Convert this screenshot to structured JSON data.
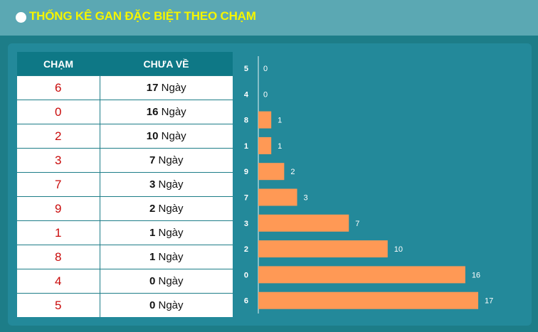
{
  "header": {
    "title": "THỐNG KÊ GAN ĐẶC BIỆT THEO CHẠM"
  },
  "table": {
    "headers": [
      "CHẠM",
      "CHƯA VỀ"
    ],
    "unit": "Ngày",
    "rows": [
      {
        "digit": "6",
        "days": "17"
      },
      {
        "digit": "0",
        "days": "16"
      },
      {
        "digit": "2",
        "days": "10"
      },
      {
        "digit": "3",
        "days": "7"
      },
      {
        "digit": "7",
        "days": "3"
      },
      {
        "digit": "9",
        "days": "2"
      },
      {
        "digit": "1",
        "days": "1"
      },
      {
        "digit": "8",
        "days": "1"
      },
      {
        "digit": "4",
        "days": "0"
      },
      {
        "digit": "5",
        "days": "0"
      }
    ]
  },
  "colors": {
    "background": "#1d7d88",
    "header_bar": "#5ba8b3",
    "title": "#f5f500",
    "table_header": "#0e7886",
    "digit": "#c90a0a",
    "bar": "#ff9955"
  },
  "chart_data": {
    "type": "bar",
    "orientation": "horizontal",
    "categories": [
      "5",
      "4",
      "8",
      "1",
      "9",
      "7",
      "3",
      "2",
      "0",
      "6"
    ],
    "values": [
      0,
      0,
      1,
      1,
      2,
      3,
      7,
      10,
      16,
      17
    ],
    "title": "",
    "xlabel": "",
    "ylabel": "",
    "xlim": [
      0,
      17
    ],
    "grid": false,
    "legend": "none"
  }
}
